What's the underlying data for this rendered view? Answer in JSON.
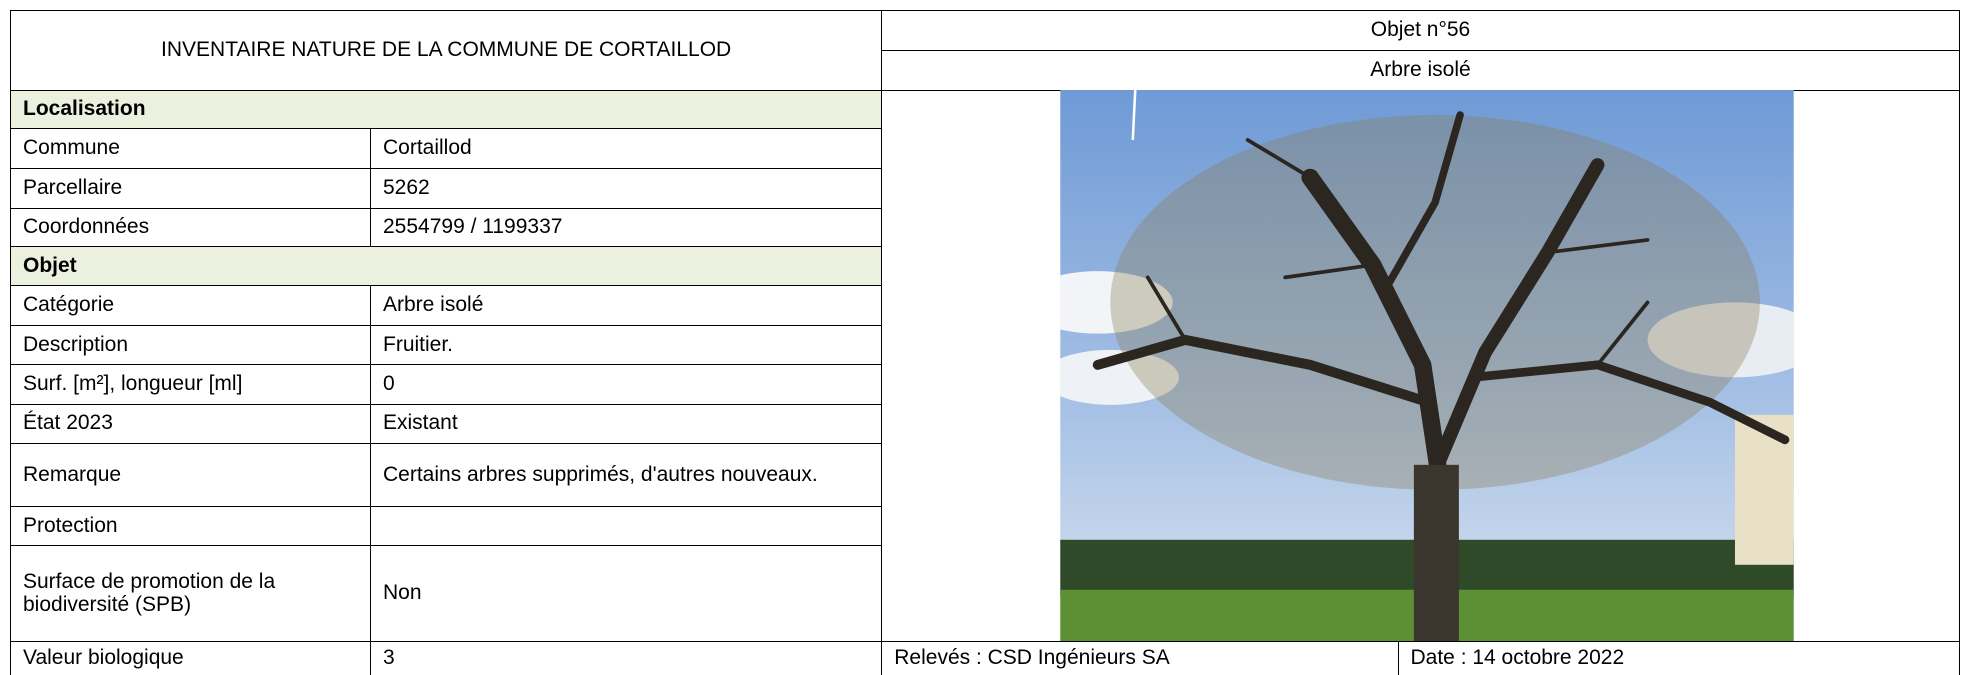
{
  "header": {
    "title": "INVENTAIRE NATURE DE LA COMMUNE DE CORTAILLOD",
    "object_number": "Objet n°56",
    "object_type": "Arbre isolé"
  },
  "sections": [
    {
      "title": "Localisation",
      "rows": [
        {
          "label": "Commune",
          "value": "Cortaillod"
        },
        {
          "label": "Parcellaire",
          "value": "5262"
        },
        {
          "label": "Coordonnées",
          "value": "2554799 / 1199337"
        }
      ]
    },
    {
      "title": "Objet",
      "rows": [
        {
          "label": "Catégorie",
          "value": "Arbre isolé"
        },
        {
          "label": "Description",
          "value": "Fruitier."
        },
        {
          "label": "Surf. [m²], longueur [ml]",
          "value": "0"
        },
        {
          "label": "État 2023",
          "value": "Existant"
        },
        {
          "label": "Remarque",
          "value": "Certains arbres supprimés, d'autres nouveaux."
        },
        {
          "label": "Protection"
        },
        {
          "label": "Surface de promotion de la biodiversité (SPB)",
          "value": "Non"
        },
        {
          "label": "Valeur biologique",
          "value": "3"
        }
      ]
    }
  ],
  "footer": {
    "releves": "Relevés : CSD Ingénieurs SA",
    "date": "Date : 14 octobre 2022"
  }
}
